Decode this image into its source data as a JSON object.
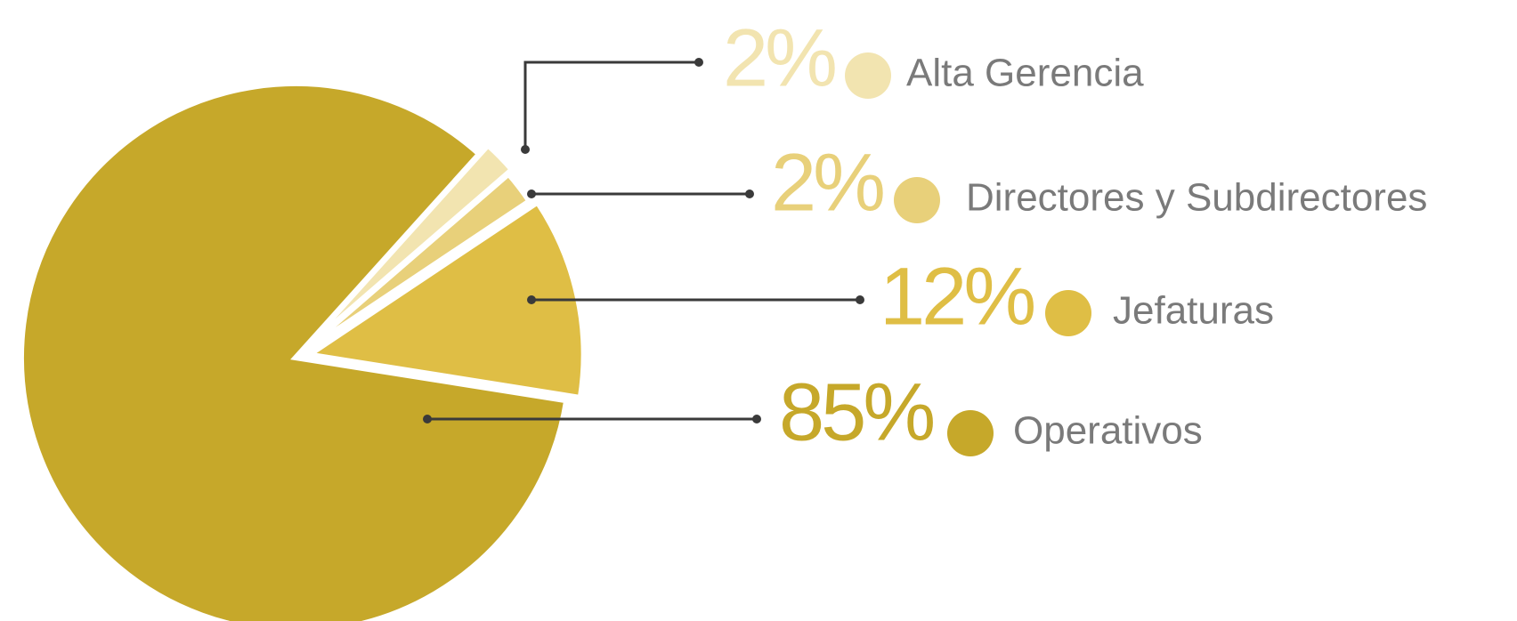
{
  "chart_data": {
    "type": "pie",
    "categories": [
      "Alta Gerencia",
      "Directores y Subdirectores",
      "Jefaturas",
      "Operativos"
    ],
    "values": [
      2,
      2,
      12,
      85
    ],
    "value_labels": [
      "2%",
      "2%",
      "12%",
      "85%"
    ],
    "colors": [
      "#f2e4b0",
      "#e8d07a",
      "#dfbe45",
      "#c6a82a"
    ]
  }
}
